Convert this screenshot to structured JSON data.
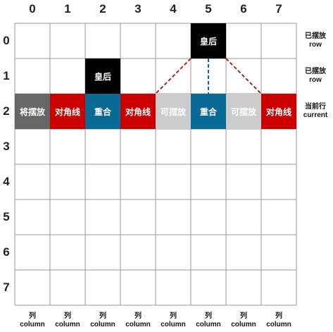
{
  "diagram": {
    "col_indices": [
      "0",
      "1",
      "2",
      "3",
      "4",
      "5",
      "6",
      "7"
    ],
    "row_indices": [
      "0",
      "1",
      "2",
      "3",
      "4",
      "5",
      "6",
      "7"
    ],
    "colors": {
      "queen": "#000000",
      "diagonal": "#cc0000",
      "overlap": "#0a6a96",
      "placeable": "#cccccc",
      "to_place": "#666666",
      "grid_line": "#999999",
      "diagonal_line": "#b22222",
      "vertical_line": "#0a6a96"
    },
    "cells": [
      {
        "row": 0,
        "col": 5,
        "kind": "queen",
        "text": "皇后"
      },
      {
        "row": 1,
        "col": 2,
        "kind": "queen",
        "text": "皇后"
      },
      {
        "row": 2,
        "col": 0,
        "kind": "to_place",
        "text": "将摆放"
      },
      {
        "row": 2,
        "col": 1,
        "kind": "diagonal",
        "text": "对角线"
      },
      {
        "row": 2,
        "col": 2,
        "kind": "overlap",
        "text": "重合"
      },
      {
        "row": 2,
        "col": 3,
        "kind": "diagonal",
        "text": "对角线"
      },
      {
        "row": 2,
        "col": 4,
        "kind": "placeable",
        "text": "可摆放"
      },
      {
        "row": 2,
        "col": 5,
        "kind": "overlap",
        "text": "重合"
      },
      {
        "row": 2,
        "col": 6,
        "kind": "placeable",
        "text": "可摆放"
      },
      {
        "row": 2,
        "col": 7,
        "kind": "diagonal",
        "text": "对角线"
      }
    ],
    "connectors": [
      {
        "from_row": 0,
        "from_col": 5,
        "to_row": 2,
        "to_col": 3,
        "style": "diagonal"
      },
      {
        "from_row": 0,
        "from_col": 5,
        "to_row": 2,
        "to_col": 7,
        "style": "diagonal"
      },
      {
        "from_row": 0,
        "from_col": 5,
        "to_row": 2,
        "to_col": 5,
        "style": "vertical"
      }
    ],
    "side_labels": [
      {
        "row": 0,
        "zh": "已摆放",
        "en": "row"
      },
      {
        "row": 1,
        "zh": "已摆放",
        "en": "row"
      },
      {
        "row": 2,
        "zh": "当前行",
        "en": "current"
      }
    ],
    "column_footer": {
      "zh": "列",
      "en": "column"
    }
  }
}
